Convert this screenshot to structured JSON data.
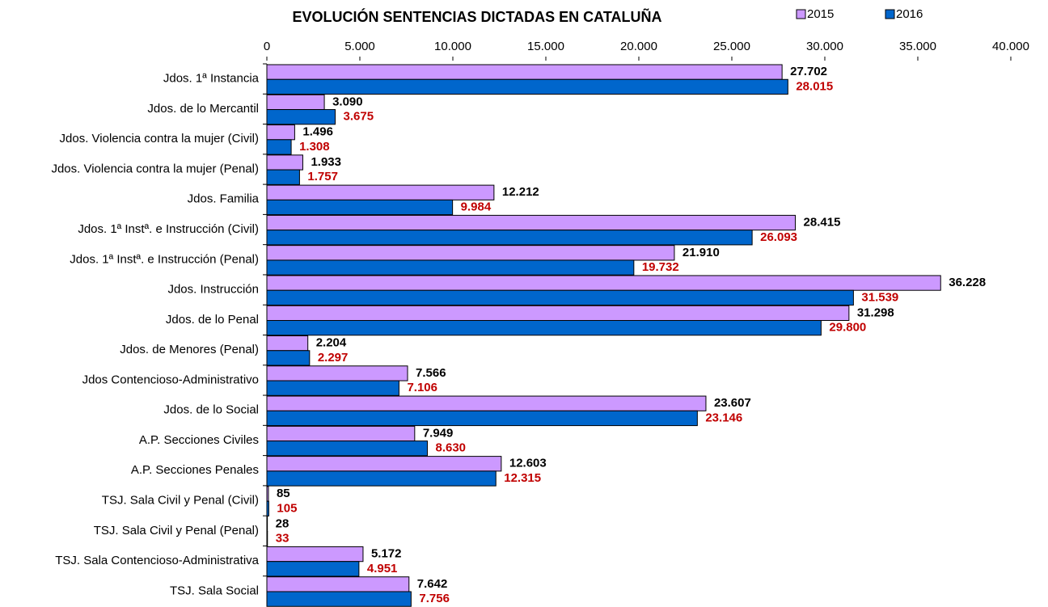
{
  "chart_data": {
    "type": "hbar",
    "title": "EVOLUCIÓN SENTENCIAS DICTADAS EN CATALUÑA",
    "categories": [
      "Jdos. 1ª Instancia",
      "Jdos. de lo Mercantil",
      "Jdos. Violencia contra la mujer (Civil)",
      "Jdos. Violencia contra la mujer (Penal)",
      "Jdos. Familia",
      "Jdos. 1ª Instª. e Instrucción (Civil)",
      "Jdos. 1ª Instª. e Instrucción  (Penal)",
      "Jdos. Instrucción",
      "Jdos. de lo Penal",
      "Jdos. de Menores  (Penal)",
      "Jdos Contencioso-Administrativo",
      "Jdos. de lo Social",
      "A.P. Secciones Civiles",
      "A.P. Secciones Penales",
      "TSJ. Sala Civil y Penal (Civil)",
      "TSJ. Sala Civil y Penal (Penal)",
      "TSJ. Sala Contencioso-Administrativa",
      "TSJ. Sala Social"
    ],
    "series": [
      {
        "name": "2015",
        "color": "#cc99ff",
        "label_color": "#000000",
        "values": [
          27702,
          3090,
          1496,
          1933,
          12212,
          28415,
          21910,
          36228,
          31298,
          2204,
          7566,
          23607,
          7949,
          12603,
          85,
          28,
          5172,
          7642
        ],
        "value_labels": [
          "27.702",
          "3.090",
          "1.496",
          "1.933",
          "12.212",
          "28.415",
          "21.910",
          "36.228",
          "31.298",
          "2.204",
          "7.566",
          "23.607",
          "7.949",
          "12.603",
          "85",
          "28",
          "5.172",
          "7.642"
        ]
      },
      {
        "name": "2016",
        "color": "#0066cc",
        "label_color": "#c00000",
        "values": [
          28015,
          3675,
          1308,
          1757,
          9984,
          26093,
          19732,
          31539,
          29800,
          2297,
          7106,
          23146,
          8630,
          12315,
          105,
          33,
          4951,
          7756
        ],
        "value_labels": [
          "28.015",
          "3.675",
          "1.308",
          "1.757",
          "9.984",
          "26.093",
          "19.732",
          "31.539",
          "29.800",
          "2.297",
          "7.106",
          "23.146",
          "8.630",
          "12.315",
          "105",
          "33",
          "4.951",
          "7.756"
        ]
      }
    ],
    "xlim": [
      0,
      40000
    ],
    "xticks": [
      0,
      {
        "value": 5000,
        "label": "5.000"
      },
      {
        "value": 10000,
        "label": "10.000"
      },
      {
        "value": 15000,
        "label": "15.000"
      },
      {
        "value": 20000,
        "label": "20.000"
      },
      {
        "value": 25000,
        "label": "25.000"
      },
      {
        "value": 30000,
        "label": "30.000"
      },
      {
        "value": 35000,
        "label": "35.000"
      },
      {
        "value": 40000,
        "label": "40.000"
      }
    ],
    "grid": false,
    "legend": "top-right"
  }
}
